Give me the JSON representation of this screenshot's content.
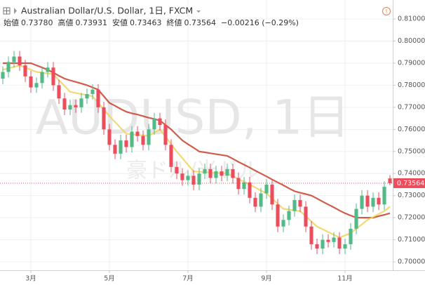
{
  "chart_data": {
    "type": "candlestick",
    "title": "Australian Dollar/U.S. Dollar, 1日, FXCM",
    "legend_values": [
      {
        "label": "始値",
        "value": "0.73780"
      },
      {
        "label": "高値",
        "value": "0.73931"
      },
      {
        "label": "安値",
        "value": "0.73463"
      },
      {
        "label": "終値",
        "value": "0.73564"
      }
    ],
    "change": "−0.00216 (−0.29%)",
    "watermark": "AUDUSD, 1日",
    "watermark_sub": "豪ドル/米ドル",
    "up_color": "#53b987",
    "down_color": "#eb4d5c",
    "grid": true,
    "ylim": [
      0.6962,
      0.8186
    ],
    "yticks": [
      {
        "value": 0.7,
        "label": "0.70000"
      },
      {
        "value": 0.71,
        "label": "0.71000"
      },
      {
        "value": 0.72,
        "label": "0.72000"
      },
      {
        "value": 0.73,
        "label": "0.73000"
      },
      {
        "value": 0.74,
        "label": "0.74000"
      },
      {
        "value": 0.75,
        "label": "0.75000"
      },
      {
        "value": 0.76,
        "label": "0.76000"
      },
      {
        "value": 0.77,
        "label": "0.77000"
      },
      {
        "value": 0.78,
        "label": "0.78000"
      },
      {
        "value": 0.79,
        "label": "0.79000"
      },
      {
        "value": 0.8,
        "label": "0.80000"
      },
      {
        "value": 0.81,
        "label": "0.81000"
      }
    ],
    "categories": [
      null,
      null,
      null,
      null,
      null,
      "3月",
      null,
      null,
      null,
      null,
      null,
      null,
      null,
      null,
      null,
      null,
      null,
      null,
      null,
      "5月",
      null,
      null,
      null,
      null,
      null,
      null,
      null,
      null,
      null,
      null,
      null,
      null,
      null,
      "7月",
      null,
      null,
      null,
      null,
      null,
      null,
      null,
      null,
      null,
      null,
      null,
      null,
      null,
      "9月",
      null,
      null,
      null,
      null,
      null,
      null,
      null,
      null,
      null,
      null,
      null,
      null,
      null,
      "11月",
      null,
      null,
      null,
      null,
      null,
      null,
      null,
      null
    ],
    "open": [
      0.783,
      0.786,
      0.7905,
      0.793,
      0.789,
      0.784,
      0.779,
      0.781,
      0.786,
      0.788,
      0.78,
      0.774,
      0.769,
      0.771,
      0.77,
      0.774,
      0.776,
      0.778,
      0.77,
      0.76,
      0.753,
      0.749,
      0.755,
      0.752,
      0.759,
      0.757,
      0.753,
      0.76,
      0.765,
      0.762,
      0.753,
      0.743,
      0.74,
      0.737,
      0.739,
      0.735,
      0.74,
      0.742,
      0.738,
      0.741,
      0.739,
      0.742,
      0.738,
      0.733,
      0.736,
      0.729,
      0.725,
      0.731,
      0.735,
      0.726,
      0.716,
      0.719,
      0.723,
      0.728,
      0.725,
      0.716,
      0.708,
      0.706,
      0.71,
      0.709,
      0.711,
      0.706,
      0.708,
      0.715,
      0.724,
      0.73,
      0.725,
      0.729,
      0.726,
      0.7378
    ],
    "high": [
      0.7885,
      0.793,
      0.7955,
      0.7955,
      0.7915,
      0.7865,
      0.7835,
      0.7885,
      0.7905,
      0.7905,
      0.7825,
      0.7765,
      0.7735,
      0.7735,
      0.7765,
      0.7785,
      0.7805,
      0.7805,
      0.7725,
      0.7625,
      0.7555,
      0.7575,
      0.7575,
      0.7615,
      0.7615,
      0.7595,
      0.7625,
      0.7675,
      0.7675,
      0.7645,
      0.7555,
      0.7455,
      0.7425,
      0.7415,
      0.7415,
      0.7425,
      0.7445,
      0.7445,
      0.7435,
      0.7435,
      0.7445,
      0.7445,
      0.7405,
      0.7385,
      0.7385,
      0.7315,
      0.7335,
      0.7375,
      0.7375,
      0.7285,
      0.7215,
      0.7255,
      0.7305,
      0.7305,
      0.7275,
      0.7185,
      0.7105,
      0.7125,
      0.7125,
      0.7135,
      0.7135,
      0.7105,
      0.7175,
      0.7265,
      0.7325,
      0.7325,
      0.7315,
      0.7315,
      0.7365,
      0.73931
    ],
    "low": [
      0.7805,
      0.7835,
      0.788,
      0.7865,
      0.7815,
      0.7765,
      0.7765,
      0.7785,
      0.7835,
      0.7775,
      0.7715,
      0.7665,
      0.7665,
      0.7675,
      0.7675,
      0.7715,
      0.7735,
      0.7675,
      0.7575,
      0.7505,
      0.7465,
      0.7465,
      0.7495,
      0.7495,
      0.7545,
      0.7505,
      0.7505,
      0.7575,
      0.7595,
      0.7505,
      0.7405,
      0.7375,
      0.7345,
      0.7345,
      0.7325,
      0.7325,
      0.7375,
      0.7355,
      0.7355,
      0.7365,
      0.7365,
      0.7355,
      0.7305,
      0.7305,
      0.7265,
      0.7225,
      0.7225,
      0.7285,
      0.7235,
      0.7135,
      0.7135,
      0.7165,
      0.7205,
      0.7225,
      0.7135,
      0.7055,
      0.7035,
      0.7035,
      0.7065,
      0.7065,
      0.7035,
      0.7035,
      0.7055,
      0.7125,
      0.7215,
      0.7225,
      0.7225,
      0.7235,
      0.7235,
      0.73463
    ],
    "close": [
      0.786,
      0.7905,
      0.793,
      0.789,
      0.784,
      0.779,
      0.781,
      0.786,
      0.788,
      0.78,
      0.774,
      0.769,
      0.771,
      0.77,
      0.774,
      0.776,
      0.778,
      0.77,
      0.76,
      0.753,
      0.749,
      0.755,
      0.752,
      0.759,
      0.757,
      0.753,
      0.76,
      0.765,
      0.762,
      0.753,
      0.743,
      0.74,
      0.737,
      0.739,
      0.735,
      0.74,
      0.742,
      0.738,
      0.741,
      0.739,
      0.742,
      0.738,
      0.733,
      0.736,
      0.729,
      0.725,
      0.731,
      0.735,
      0.726,
      0.716,
      0.719,
      0.723,
      0.728,
      0.725,
      0.716,
      0.708,
      0.706,
      0.71,
      0.709,
      0.711,
      0.706,
      0.708,
      0.715,
      0.724,
      0.73,
      0.725,
      0.729,
      0.726,
      0.734,
      0.73564
    ],
    "series": [
      {
        "color": "#c8402c",
        "values": [
          0.79,
          0.79,
          0.79,
          0.79,
          0.79,
          0.79,
          0.789,
          0.788,
          0.787,
          0.7857,
          0.7843,
          0.783,
          0.7822,
          0.7815,
          0.7808,
          0.78,
          0.779,
          0.778,
          0.775,
          0.772,
          0.7707,
          0.7693,
          0.768,
          0.7673,
          0.7667,
          0.766,
          0.7653,
          0.7647,
          0.764,
          0.762,
          0.76,
          0.7575,
          0.755,
          0.7533,
          0.7517,
          0.75,
          0.7496,
          0.7492,
          0.7488,
          0.7484,
          0.748,
          0.7467,
          0.7453,
          0.744,
          0.7427,
          0.7413,
          0.74,
          0.7387,
          0.7373,
          0.736,
          0.7347,
          0.7333,
          0.732,
          0.7313,
          0.7307,
          0.73,
          0.7287,
          0.7273,
          0.726,
          0.7247,
          0.7233,
          0.722,
          0.721,
          0.72,
          0.72,
          0.72,
          0.72,
          0.7207,
          0.7213,
          0.722
        ]
      },
      {
        "color": "#f2d25a",
        "values": [
          0.787,
          0.7877,
          0.7883,
          0.789,
          0.788,
          0.787,
          0.786,
          0.7857,
          0.7853,
          0.785,
          0.7823,
          0.7797,
          0.777,
          0.7765,
          0.776,
          0.7755,
          0.775,
          0.772,
          0.769,
          0.766,
          0.7633,
          0.7607,
          0.758,
          0.7578,
          0.7575,
          0.7573,
          0.757,
          0.7585,
          0.76,
          0.7567,
          0.7533,
          0.75,
          0.747,
          0.744,
          0.741,
          0.7408,
          0.7407,
          0.7405,
          0.7403,
          0.7402,
          0.74,
          0.7388,
          0.7375,
          0.7363,
          0.735,
          0.7337,
          0.7323,
          0.731,
          0.7287,
          0.7263,
          0.724,
          0.7237,
          0.7233,
          0.723,
          0.7207,
          0.7183,
          0.716,
          0.7148,
          0.7135,
          0.7123,
          0.711,
          0.712,
          0.713,
          0.715,
          0.717,
          0.719,
          0.7203,
          0.7217,
          0.723,
          0.725
        ]
      }
    ]
  }
}
